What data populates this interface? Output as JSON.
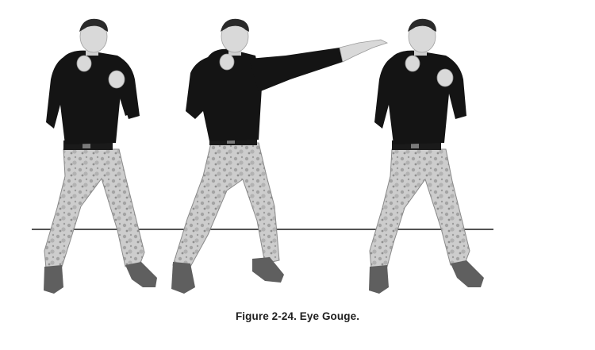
{
  "document": {
    "caption": "Figure 2-24. Eye Gouge."
  },
  "figure": {
    "colors": {
      "shirt": "#141414",
      "skin": "#d9d9d9",
      "skin_shade": "#a8a8a8",
      "hair": "#2a2a2a",
      "pants": "#c9c9c9",
      "pants_pattern": "#9a9a9a",
      "boots": "#5a5a5a",
      "belt": "#1a1a1a",
      "ground_line": "#1a1a1a"
    }
  }
}
